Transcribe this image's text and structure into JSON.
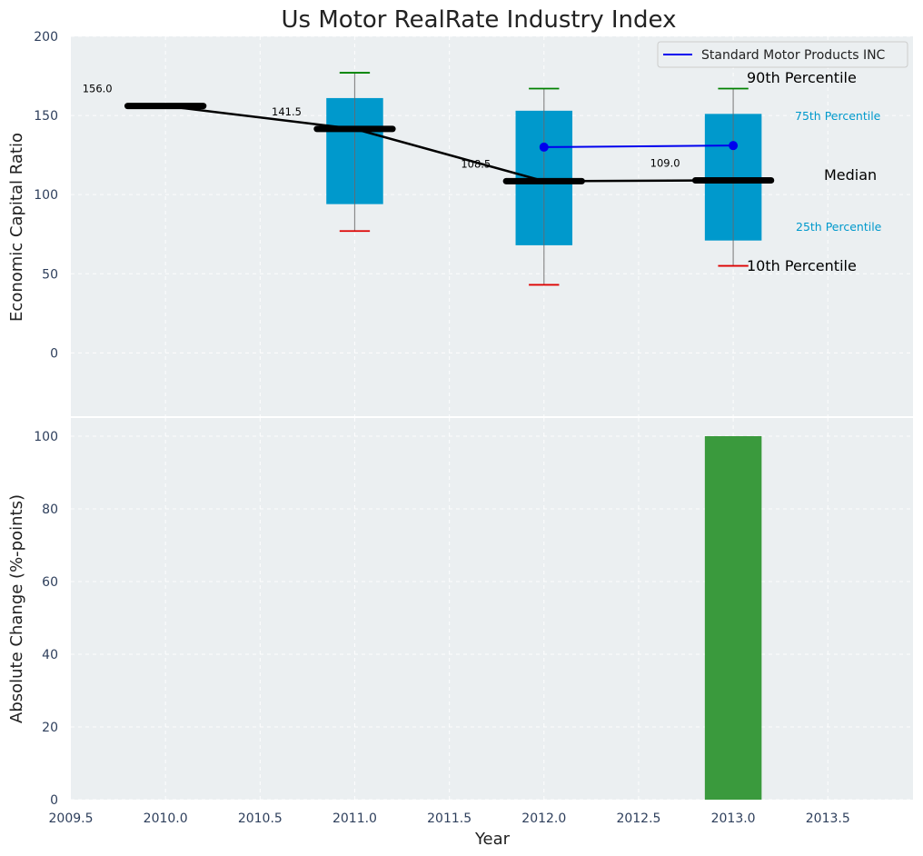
{
  "chart_data": [
    {
      "type": "box",
      "title": "Us Motor RealRate Industry Index",
      "ylabel": "Economic Capital Ratio",
      "xlim": [
        2009.5,
        2013.95
      ],
      "ylim": [
        -40,
        200
      ],
      "yticks": [
        0,
        50,
        100,
        150,
        200
      ],
      "grid": true,
      "legend": {
        "placement": "top-right",
        "entries": [
          "Standard Motor Products INC"
        ]
      },
      "percentile_labels": {
        "p90": "90th Percentile",
        "p75": "75th Percentile",
        "median": "Median",
        "p25": "25th Percentile",
        "p10": "10th Percentile"
      },
      "boxes": [
        {
          "year": 2010,
          "p10": null,
          "p25": null,
          "median": 156.0,
          "p75": null,
          "p90": null,
          "median_label": "156.0"
        },
        {
          "year": 2011,
          "p10": 77,
          "p25": 94,
          "median": 141.5,
          "p75": 161,
          "p90": 177,
          "median_label": "141.5"
        },
        {
          "year": 2012,
          "p10": 43,
          "p25": 68,
          "median": 108.5,
          "p75": 153,
          "p90": 167,
          "median_label": "108.5"
        },
        {
          "year": 2013,
          "p10": 55,
          "p25": 71,
          "median": 109.0,
          "p75": 151,
          "p90": 167,
          "median_label": "109.0"
        }
      ],
      "median_line": {
        "x": [
          2010,
          2011,
          2012,
          2013
        ],
        "y": [
          156.0,
          141.5,
          108.5,
          109.0
        ]
      },
      "series": [
        {
          "name": "Standard Motor Products INC",
          "x": [
            2012,
            2013
          ],
          "y": [
            130,
            131
          ],
          "color": "#0000ee"
        }
      ],
      "colors": {
        "box": "#0099cc",
        "p90": "#008000",
        "p10": "#dd0000",
        "median": "#000000",
        "background": "#ebeff1"
      }
    },
    {
      "type": "bar",
      "xlabel": "Year",
      "ylabel": "Absolute Change (%-points)",
      "xlim": [
        2009.5,
        2013.95
      ],
      "ylim": [
        0,
        105
      ],
      "yticks": [
        0,
        20,
        40,
        60,
        80,
        100
      ],
      "xticks": [
        "2009.5",
        "2010.0",
        "2010.5",
        "2011.0",
        "2011.5",
        "2012.0",
        "2012.5",
        "2013.0",
        "2013.5"
      ],
      "grid": true,
      "bars": [
        {
          "x": 2013,
          "value": 100,
          "color": "#3a9a3d"
        }
      ]
    }
  ]
}
